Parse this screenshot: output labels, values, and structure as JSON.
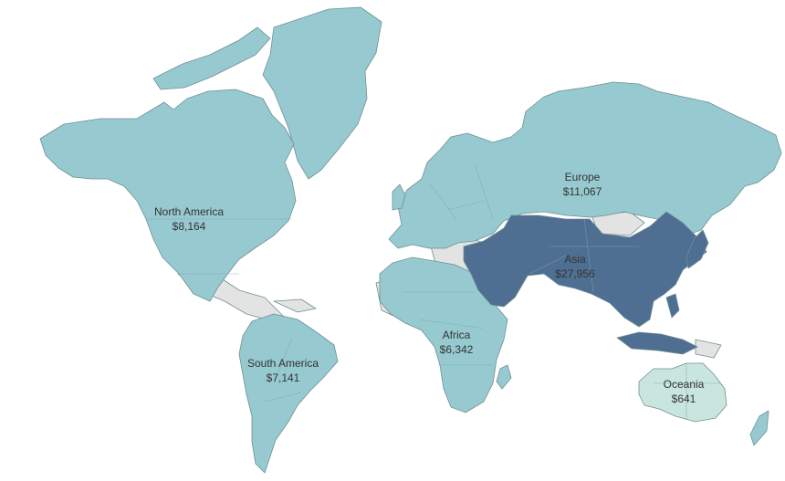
{
  "colors": {
    "americas_europe_africa": "#97cad0",
    "asia": "#4f6f92",
    "oceania": "#c9e6de",
    "no_data": "#e3e3e3",
    "background": "#ffffff"
  },
  "regions": [
    {
      "id": "north-america",
      "name": "North America",
      "value": "$8,164"
    },
    {
      "id": "south-america",
      "name": "South America",
      "value": "$7,141"
    },
    {
      "id": "europe",
      "name": "Europe",
      "value": "$11,067"
    },
    {
      "id": "africa",
      "name": "Africa",
      "value": "$6,342"
    },
    {
      "id": "asia",
      "name": "Asia",
      "value": "$27,956"
    },
    {
      "id": "oceania",
      "name": "Oceania",
      "value": "$641"
    }
  ]
}
